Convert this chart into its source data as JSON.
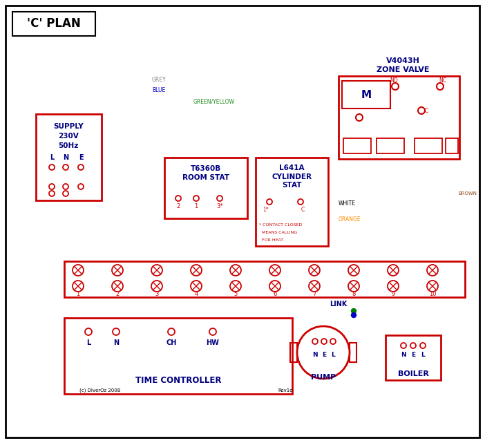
{
  "title": "'C' PLAN",
  "bg_color": "#ffffff",
  "red": "#cc0000",
  "dark_blue": "#000080",
  "blue_wire": "#0000cc",
  "green_wire": "#008000",
  "brown_wire": "#8B4513",
  "grey_wire": "#808080",
  "orange_wire": "#FF8C00",
  "green_yellow_wire": "#228B22",
  "copyright": "(c) DiverOz 2008",
  "revision": "Rev1d"
}
